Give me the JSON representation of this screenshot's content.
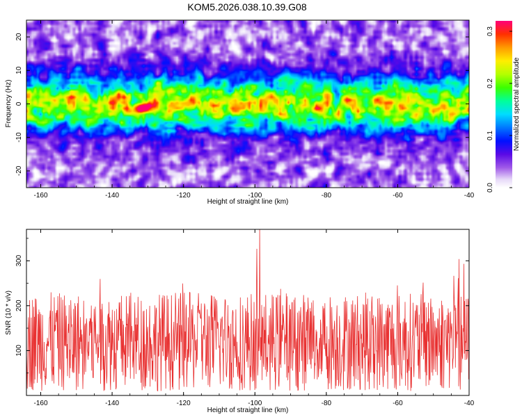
{
  "figure": {
    "title": "KOM5.2026.038.10.39.G08"
  },
  "chart_data": [
    {
      "type": "heatmap",
      "title": "KOM5.2026.038.10.39.G08",
      "xlabel": "Height of straight line (km)",
      "ylabel": "Frequency (Hz)",
      "xlim": [
        -164,
        -40
      ],
      "ylim": [
        -25,
        25
      ],
      "x_ticks": [
        "-160",
        "-140",
        "-120",
        "-100",
        "-80",
        "-60",
        "-40"
      ],
      "y_ticks": [
        "-20",
        "-10",
        "0",
        "10",
        "20"
      ],
      "colorbar": {
        "label": "Normalized spectral amplitude",
        "range": [
          0.0,
          0.32
        ],
        "ticks": [
          "0.0",
          "0.1",
          "0.2",
          "0.3"
        ]
      },
      "description_band": {
        "center_hz": 0,
        "halfwidth_hz": 8,
        "peak_x_km": -131,
        "peak_y_hz": -1,
        "peak_value": 0.3
      }
    },
    {
      "type": "line",
      "xlabel": "Height of straight line (km)",
      "ylabel": "SNR (10 * v/v)",
      "xlim": [
        -164,
        -40
      ],
      "ylim": [
        0,
        370
      ],
      "x_ticks": [
        "-160",
        "-140",
        "-120",
        "-100",
        "-80",
        "-60",
        "-40"
      ],
      "y_ticks": [
        "100",
        "200",
        "300"
      ],
      "series": [
        {
          "name": "SNR",
          "color": "#e83030",
          "mean": 120,
          "min": 5,
          "max": 370,
          "samples": 1100
        }
      ]
    }
  ]
}
